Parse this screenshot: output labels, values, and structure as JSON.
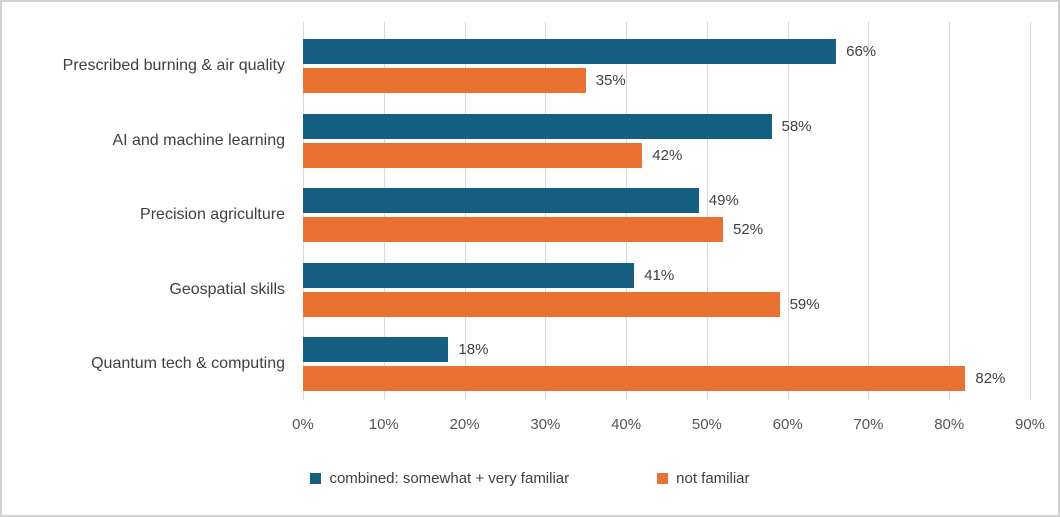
{
  "chart_data": {
    "type": "bar",
    "orientation": "horizontal",
    "title": "",
    "categories": [
      "Prescribed burning & air quality",
      "AI and machine learning",
      "Precision agriculture",
      "Geospatial skills",
      "Quantum tech & computing"
    ],
    "series": [
      {
        "name": "combined: somewhat + very familiar",
        "color": "#156082",
        "values": [
          66,
          58,
          49,
          41,
          18
        ]
      },
      {
        "name": "not familiar",
        "color": "#E97132",
        "values": [
          35,
          42,
          52,
          59,
          82
        ]
      }
    ],
    "value_suffix": "%",
    "xlim": [
      0,
      90
    ],
    "x_tick_labels": [
      "0%",
      "10%",
      "20%",
      "30%",
      "40%",
      "50%",
      "60%",
      "70%",
      "80%",
      "90%"
    ],
    "grid": "vertical",
    "gridline_color": "#d9d9d9",
    "data_labels": true,
    "legend_position": "bottom"
  }
}
